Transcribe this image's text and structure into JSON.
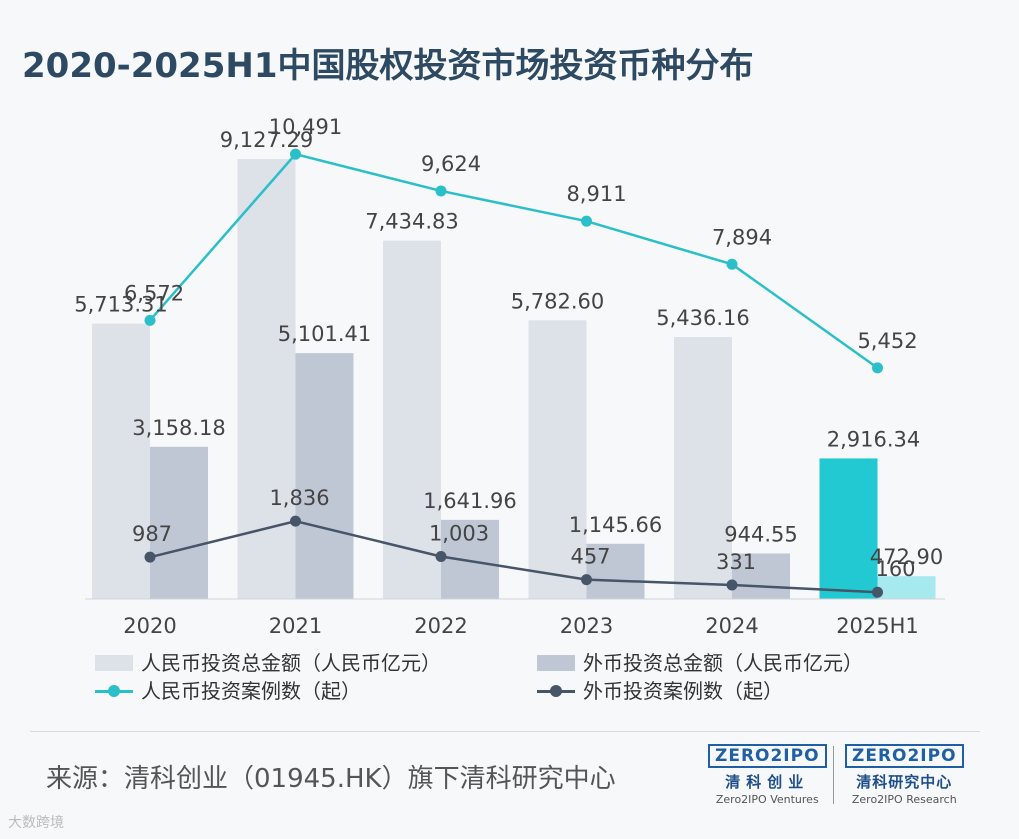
{
  "title": "2020-2025H1中国股权投资市场投资币种分布",
  "colors": {
    "rmb_amount": "#dde1e8",
    "foreign_amount": "#c0c7d4",
    "highlight_rmb_amount": "#22c8d2",
    "highlight_foreign_amount": "#a6e9ee",
    "rmb_cases_line": "#2bbfc9",
    "foreign_cases_line": "#465568",
    "label_text": "#444444"
  },
  "chart_data": {
    "type": "bar+line",
    "categories": [
      "2020",
      "2021",
      "2022",
      "2023",
      "2024",
      "2025H1"
    ],
    "bar_ylim": [
      0,
      9500
    ],
    "line_ylim": [
      0,
      11500
    ],
    "series": [
      {
        "name": "人民币投资总金额（人民币亿元）",
        "kind": "bar",
        "values": [
          5713.31,
          9127.29,
          7434.83,
          5782.6,
          5436.16,
          2916.34
        ],
        "labels": [
          "5,713.31",
          "9,127.29",
          "7,434.83",
          "5,782.60",
          "5,436.16",
          "2,916.34"
        ]
      },
      {
        "name": "外币投资总金额（人民币亿元）",
        "kind": "bar",
        "values": [
          3158.18,
          5101.41,
          1641.96,
          1145.66,
          944.55,
          472.9
        ],
        "labels": [
          "3,158.18",
          "5,101.41",
          "1,641.96",
          "1,145.66",
          "944.55",
          "472.90"
        ]
      },
      {
        "name": "人民币投资案例数（起）",
        "kind": "line",
        "values": [
          6572,
          10491,
          9624,
          8911,
          7894,
          5452
        ],
        "labels": [
          "6,572",
          "10,491",
          "9,624",
          "8,911",
          "7,894",
          "5,452"
        ]
      },
      {
        "name": "外币投资案例数（起）",
        "kind": "line",
        "values": [
          987,
          1836,
          1003,
          457,
          331,
          160
        ],
        "labels": [
          "987",
          "1,836",
          "1,003",
          "457",
          "331",
          "160"
        ]
      }
    ],
    "highlight_category": "2025H1"
  },
  "legend": {
    "rmb_amount": "人民币投资总金额（人民币亿元）",
    "foreign_amount": "外币投资总金额（人民币亿元）",
    "rmb_cases": "人民币投资案例数（起）",
    "foreign_cases": "外币投资案例数（起）"
  },
  "footer": {
    "source": "来源：清科创业（01945.HK）旗下清科研究中心",
    "logo1": {
      "brand": "ZERO2IPO",
      "cn": "清科创业",
      "en": "Zero2IPO Ventures"
    },
    "logo2": {
      "brand": "ZERO2IPO",
      "cn": "清科研究中心",
      "en": "Zero2IPO Research"
    },
    "watermark": "大数跨境"
  }
}
